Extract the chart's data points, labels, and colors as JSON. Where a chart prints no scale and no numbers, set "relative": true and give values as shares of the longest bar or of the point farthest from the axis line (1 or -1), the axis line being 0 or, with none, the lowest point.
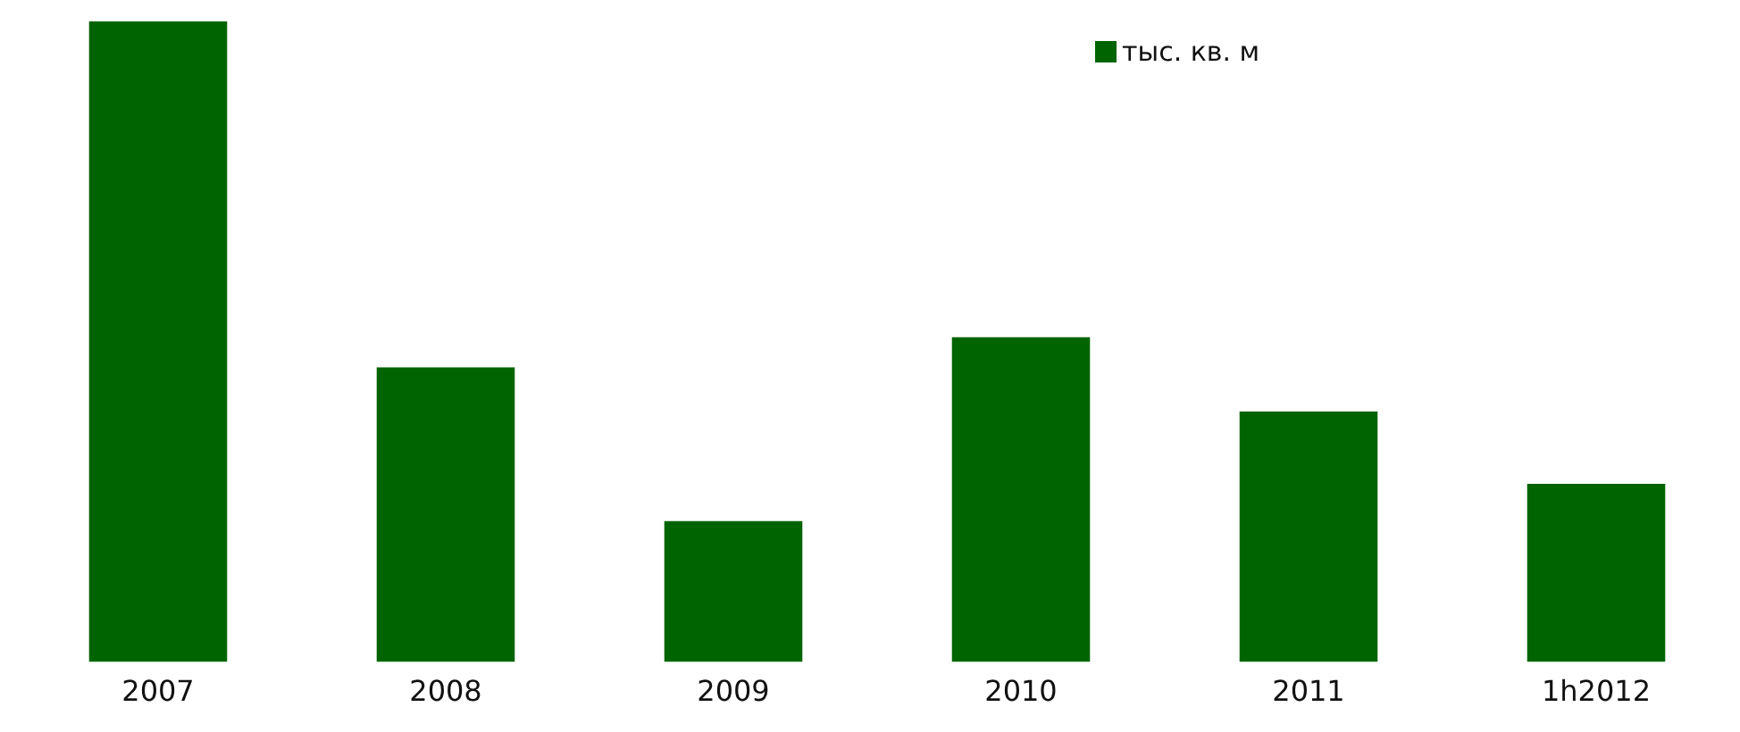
{
  "chart_data": {
    "type": "bar",
    "categories": [
      "2007",
      "2008",
      "2009",
      "2010",
      "2011",
      "1h2012"
    ],
    "relative": true,
    "legend": "top right",
    "grid": false,
    "series": [
      {
        "name": "тыс. кв. м",
        "color": "#006400",
        "values": [
          1,
          0.46,
          0.22,
          0.507,
          0.391,
          0.278
        ]
      }
    ]
  }
}
